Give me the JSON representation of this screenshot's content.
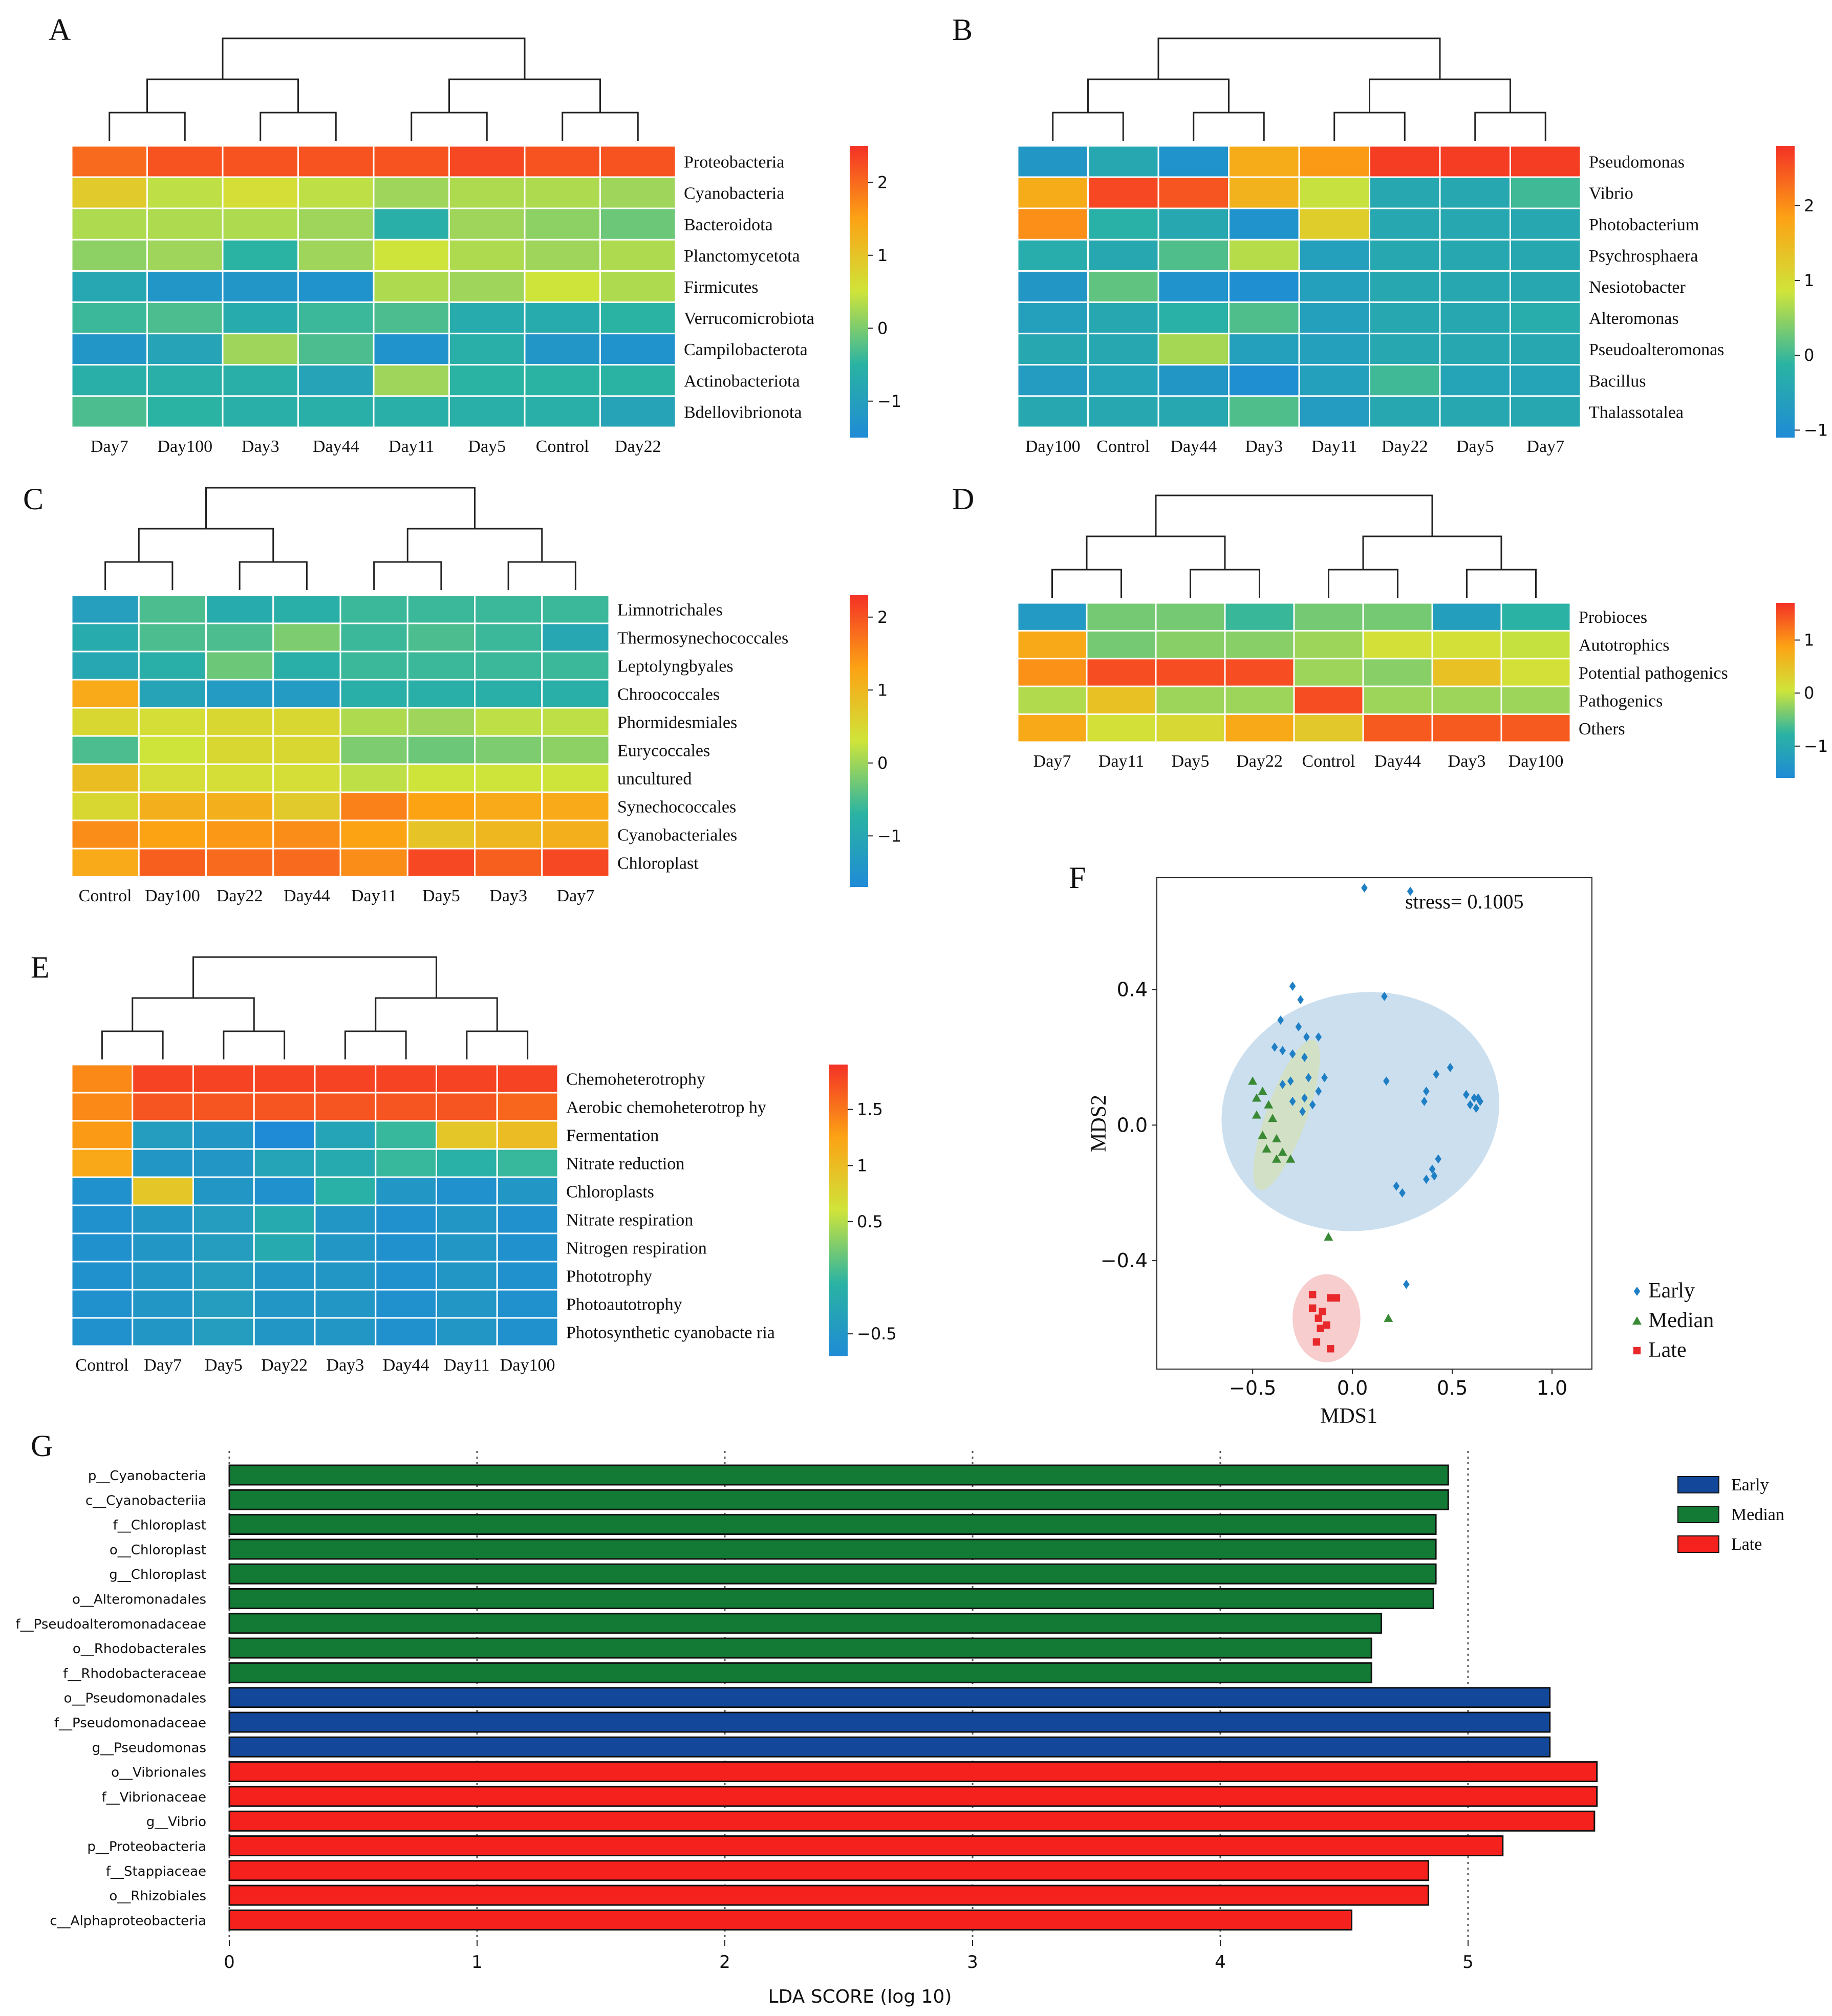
{
  "chart_data": [
    {
      "panel": "A",
      "type": "heatmap",
      "title": "A",
      "columns": [
        "Day7",
        "Day100",
        "Day3",
        "Day44",
        "Day11",
        "Day5",
        "Control",
        "Day22"
      ],
      "rows": [
        "Proteobacteria",
        "Cyanobacteria",
        "Bacteroidota",
        "Planctomycetota",
        "Firmicutes",
        "Verrucomicrobiota",
        "Campilobacterota",
        "Actinobacteriota",
        "Bdellovibrionota"
      ],
      "values": [
        [
          2.0,
          2.2,
          2.2,
          2.2,
          2.2,
          2.3,
          2.2,
          2.2
        ],
        [
          0.9,
          0.4,
          0.6,
          0.4,
          0.2,
          0.3,
          0.3,
          0.2
        ],
        [
          0.3,
          0.3,
          0.3,
          0.2,
          -0.6,
          0.2,
          0.1,
          -0.1
        ],
        [
          0.1,
          0.2,
          -0.5,
          0.2,
          0.5,
          0.3,
          0.2,
          0.3
        ],
        [
          -0.8,
          -1.2,
          -1.2,
          -1.3,
          0.3,
          0.2,
          0.5,
          0.3
        ],
        [
          -0.4,
          -0.3,
          -0.7,
          -0.4,
          -0.3,
          -0.7,
          -0.7,
          -0.5
        ],
        [
          -1.2,
          -0.9,
          0.2,
          -0.3,
          -1.3,
          -0.6,
          -1.2,
          -1.3
        ],
        [
          -0.6,
          -0.6,
          -0.6,
          -0.9,
          0.2,
          -0.5,
          -0.5,
          -0.5
        ],
        [
          -0.3,
          -0.5,
          -0.6,
          -0.6,
          -0.6,
          -0.6,
          -0.6,
          -0.9
        ]
      ],
      "colorbar_ticks": [
        2,
        1,
        0,
        -1
      ],
      "colorbar_range": [
        -1.5,
        2.5
      ]
    },
    {
      "panel": "B",
      "type": "heatmap",
      "title": "B",
      "columns": [
        "Day100",
        "Control",
        "Day44",
        "Day3",
        "Day11",
        "Day22",
        "Day5",
        "Day7"
      ],
      "rows": [
        "Pseudomonas",
        "Vibrio",
        "Photobacterium",
        "Psychrosphaera",
        "Nesiotobacter",
        "Alteromonas",
        "Pseudoalteromonas",
        "Bacillus",
        "Thalassotalea"
      ],
      "values": [
        [
          -0.8,
          -0.4,
          -0.9,
          1.7,
          1.9,
          2.7,
          2.7,
          2.7
        ],
        [
          1.7,
          2.6,
          2.5,
          1.6,
          0.8,
          -0.4,
          -0.4,
          0.0
        ],
        [
          2.0,
          -0.2,
          -0.4,
          -0.9,
          1.2,
          -0.4,
          -0.4,
          -0.4
        ],
        [
          -0.3,
          -0.4,
          0.1,
          0.7,
          -0.6,
          -0.4,
          -0.4,
          -0.4
        ],
        [
          -0.8,
          0.2,
          -0.9,
          -1.0,
          -0.6,
          -0.4,
          -0.4,
          -0.4
        ],
        [
          -0.6,
          -0.4,
          -0.2,
          0.1,
          -0.6,
          -0.4,
          -0.4,
          -0.3
        ],
        [
          -0.4,
          -0.4,
          0.6,
          -0.6,
          -0.6,
          -0.4,
          -0.4,
          -0.4
        ],
        [
          -0.7,
          -0.5,
          -0.8,
          -1.0,
          -0.6,
          0.0,
          -0.5,
          -0.5
        ],
        [
          -0.4,
          -0.4,
          -0.4,
          0.1,
          -0.7,
          -0.4,
          -0.4,
          -0.4
        ]
      ],
      "colorbar_ticks": [
        2,
        1,
        0,
        -1
      ],
      "colorbar_range": [
        -1.1,
        2.8
      ]
    },
    {
      "panel": "C",
      "type": "heatmap",
      "title": "C",
      "columns": [
        "Control",
        "Day100",
        "Day22",
        "Day44",
        "Day11",
        "Day5",
        "Day3",
        "Day7"
      ],
      "rows": [
        "Limnotrichales",
        "Thermosynechococcales",
        "Leptolyngbyales",
        "Chroococcales",
        "Phormidesmiales",
        "Eurycoccales",
        "uncultured",
        "Synechococcales",
        "Cyanobacteriales",
        "Chloroplast"
      ],
      "values": [
        [
          -1.2,
          -0.5,
          -0.9,
          -0.8,
          -0.6,
          -0.6,
          -0.6,
          -0.6
        ],
        [
          -0.9,
          -0.5,
          -0.5,
          -0.2,
          -0.6,
          -0.5,
          -0.6,
          -1.0
        ],
        [
          -1.0,
          -0.8,
          -0.3,
          -0.8,
          -0.6,
          -0.6,
          -0.6,
          -0.6
        ],
        [
          1.2,
          -1.1,
          -1.3,
          -1.3,
          -0.8,
          -0.8,
          -0.8,
          -0.8
        ],
        [
          0.5,
          0.4,
          0.5,
          0.5,
          0.1,
          0.0,
          0.2,
          0.2
        ],
        [
          -0.5,
          0.3,
          0.5,
          0.5,
          -0.2,
          -0.3,
          -0.2,
          -0.1
        ],
        [
          0.9,
          0.4,
          0.4,
          0.4,
          0.2,
          0.3,
          0.3,
          0.3
        ],
        [
          0.5,
          1.1,
          1.1,
          0.7,
          1.6,
          1.3,
          1.2,
          1.2
        ],
        [
          1.5,
          1.3,
          1.4,
          1.5,
          1.3,
          0.8,
          1.0,
          1.1
        ],
        [
          1.2,
          1.9,
          1.8,
          1.8,
          1.5,
          2.1,
          1.9,
          2.1
        ]
      ],
      "colorbar_ticks": [
        2,
        1,
        0,
        -1
      ],
      "colorbar_range": [
        -1.7,
        2.3
      ]
    },
    {
      "panel": "D",
      "type": "heatmap",
      "title": "D",
      "columns": [
        "Day7",
        "Day11",
        "Day5",
        "Day22",
        "Control",
        "Day44",
        "Day3",
        "Day100"
      ],
      "rows": [
        "Probioces",
        "Autotrophics",
        "Potential pathogenics",
        "Pathogenics",
        "Others"
      ],
      "values": [
        [
          -1.3,
          -0.4,
          -0.4,
          -0.7,
          -0.4,
          -0.4,
          -1.2,
          -0.8
        ],
        [
          0.8,
          -0.4,
          -0.3,
          -0.3,
          -0.2,
          0.1,
          0.1,
          0.0
        ],
        [
          1.0,
          1.5,
          1.5,
          1.5,
          -0.2,
          -0.3,
          0.5,
          0.1
        ],
        [
          -0.1,
          0.5,
          -0.2,
          -0.2,
          1.5,
          -0.2,
          -0.2,
          -0.2
        ],
        [
          0.8,
          0.1,
          0.2,
          0.8,
          0.4,
          1.4,
          1.4,
          1.4
        ]
      ],
      "colorbar_ticks": [
        1,
        0,
        -1
      ],
      "colorbar_range": [
        -1.6,
        1.7
      ]
    },
    {
      "panel": "E",
      "type": "heatmap",
      "title": "E",
      "columns": [
        "Control",
        "Day7",
        "Day5",
        "Day22",
        "Day3",
        "Day44",
        "Day11",
        "Day100"
      ],
      "rows": [
        "Chemoheterotrophy",
        "Aerobic chemoheterotrop hy",
        "Fermentation",
        "Nitrate reduction",
        "Chloroplasts",
        "Nitrate respiration",
        "Nitrogen respiration",
        "Phototrophy",
        "Photoautotrophy",
        "Photosynthetic cyanobacte ria"
      ],
      "values": [
        [
          1.4,
          1.8,
          1.8,
          1.8,
          1.8,
          1.8,
          1.8,
          1.8
        ],
        [
          1.4,
          1.7,
          1.7,
          1.7,
          1.7,
          1.7,
          1.7,
          1.6
        ],
        [
          1.3,
          -0.4,
          -0.5,
          -0.7,
          -0.3,
          0.0,
          0.9,
          1.0
        ],
        [
          1.2,
          -0.5,
          -0.5,
          -0.3,
          -0.2,
          0.0,
          -0.1,
          0.0
        ],
        [
          -0.6,
          0.9,
          -0.5,
          -0.6,
          -0.1,
          -0.5,
          -0.6,
          -0.5
        ],
        [
          -0.6,
          -0.5,
          -0.4,
          -0.2,
          -0.5,
          -0.6,
          -0.5,
          -0.6
        ],
        [
          -0.6,
          -0.5,
          -0.4,
          -0.2,
          -0.5,
          -0.6,
          -0.5,
          -0.6
        ],
        [
          -0.6,
          -0.5,
          -0.4,
          -0.5,
          -0.5,
          -0.6,
          -0.5,
          -0.6
        ],
        [
          -0.6,
          -0.5,
          -0.4,
          -0.5,
          -0.5,
          -0.6,
          -0.5,
          -0.6
        ],
        [
          -0.6,
          -0.5,
          -0.4,
          -0.5,
          -0.5,
          -0.6,
          -0.5,
          -0.6
        ]
      ],
      "colorbar_ticks": [
        1.5,
        1,
        0.5,
        -0.5
      ],
      "colorbar_range": [
        -0.7,
        1.9
      ]
    },
    {
      "panel": "F",
      "type": "scatter",
      "title": "F",
      "xlabel": "MDS1",
      "ylabel": "MDS2",
      "xlim": [
        -0.98,
        1.2
      ],
      "ylim": [
        -0.72,
        0.73
      ],
      "xticks": [
        "-0.5",
        "0.0",
        "0.5",
        "1.0"
      ],
      "xtick_values": [
        -0.5,
        0.0,
        0.5,
        1.0
      ],
      "yticks": [
        "0.4",
        "0.0",
        "-0.4"
      ],
      "ytick_values": [
        0.4,
        0.0,
        -0.4
      ],
      "annotation": "stress= 0.1005",
      "legend": [
        "Early",
        "Median",
        "Late"
      ],
      "series": [
        {
          "name": "Early",
          "color": "#1f7fc4",
          "marker": "diamond",
          "points": [
            [
              0.06,
              0.7
            ],
            [
              0.29,
              0.69
            ],
            [
              -0.3,
              0.41
            ],
            [
              0.16,
              0.38
            ],
            [
              -0.26,
              0.37
            ],
            [
              -0.36,
              0.31
            ],
            [
              -0.27,
              0.29
            ],
            [
              -0.23,
              0.26
            ],
            [
              -0.17,
              0.26
            ],
            [
              -0.39,
              0.23
            ],
            [
              -0.35,
              0.22
            ],
            [
              -0.3,
              0.21
            ],
            [
              -0.24,
              0.2
            ],
            [
              -0.14,
              0.14
            ],
            [
              -0.22,
              0.14
            ],
            [
              -0.31,
              0.13
            ],
            [
              -0.35,
              0.12
            ],
            [
              -0.17,
              0.1
            ],
            [
              -0.24,
              0.08
            ],
            [
              -0.3,
              0.07
            ],
            [
              -0.2,
              0.06
            ],
            [
              -0.25,
              0.04
            ],
            [
              0.49,
              0.17
            ],
            [
              0.42,
              0.15
            ],
            [
              0.37,
              0.1
            ],
            [
              0.17,
              0.13
            ],
            [
              0.36,
              0.07
            ],
            [
              0.57,
              0.09
            ],
            [
              0.61,
              0.08
            ],
            [
              0.63,
              0.08
            ],
            [
              0.59,
              0.06
            ],
            [
              0.62,
              0.05
            ],
            [
              0.64,
              0.07
            ],
            [
              0.43,
              -0.1
            ],
            [
              0.4,
              -0.13
            ],
            [
              0.41,
              -0.15
            ],
            [
              0.37,
              -0.16
            ],
            [
              0.22,
              -0.18
            ],
            [
              0.25,
              -0.2
            ],
            [
              0.27,
              -0.47
            ]
          ]
        },
        {
          "name": "Median",
          "color": "#3a8a35",
          "marker": "triangle",
          "points": [
            [
              -0.5,
              0.13
            ],
            [
              -0.48,
              0.08
            ],
            [
              -0.45,
              0.1
            ],
            [
              -0.42,
              0.06
            ],
            [
              -0.48,
              0.03
            ],
            [
              -0.4,
              0.02
            ],
            [
              -0.45,
              -0.03
            ],
            [
              -0.38,
              -0.04
            ],
            [
              -0.43,
              -0.07
            ],
            [
              -0.35,
              -0.08
            ],
            [
              -0.31,
              -0.1
            ],
            [
              -0.38,
              -0.1
            ],
            [
              -0.12,
              -0.33
            ],
            [
              0.18,
              -0.57
            ]
          ]
        },
        {
          "name": "Late",
          "color": "#e8282a",
          "marker": "square",
          "points": [
            [
              -0.2,
              -0.5
            ],
            [
              -0.11,
              -0.51
            ],
            [
              -0.2,
              -0.54
            ],
            [
              -0.15,
              -0.55
            ],
            [
              -0.08,
              -0.51
            ],
            [
              -0.17,
              -0.57
            ],
            [
              -0.16,
              -0.6
            ],
            [
              -0.13,
              -0.59
            ],
            [
              -0.18,
              -0.64
            ],
            [
              -0.11,
              -0.66
            ]
          ]
        }
      ],
      "ellipses": [
        {
          "group": "Early",
          "color": "#c2d9ec",
          "center": [
            0.04,
            0.04
          ],
          "rx": 0.7,
          "ry": 0.35,
          "angle": -12
        },
        {
          "group": "Median",
          "color": "#d4e2bd",
          "center": [
            -0.33,
            0.03
          ],
          "rx": 0.4,
          "ry": 0.06,
          "angle": -70
        },
        {
          "group": "Late",
          "color": "#f6c4c4",
          "center": [
            -0.13,
            -0.57
          ],
          "rx": 0.17,
          "ry": 0.13,
          "angle": 0
        }
      ]
    },
    {
      "panel": "G",
      "type": "bar",
      "orientation": "horizontal",
      "title": "G",
      "xlabel": "LDA SCORE (log 10)",
      "xlim": [
        0,
        5.5
      ],
      "xticks": [
        0,
        1,
        2,
        3,
        4,
        5
      ],
      "legend": [
        {
          "name": "Early",
          "color": "#13479a"
        },
        {
          "name": "Median",
          "color": "#127a35"
        },
        {
          "name": "Late",
          "color": "#f5211c"
        }
      ],
      "categories": [
        "p__Cyanobacteria",
        "c__Cyanobacteriia",
        "f__Chloroplast",
        "o__Chloroplast",
        "g__Chloroplast",
        "o__Alteromonadales",
        "f__Pseudoalteromonadaceae",
        "o__Rhodobacterales",
        "f__Rhodobacteraceae",
        "o__Pseudomonadales",
        "f__Pseudomonadaceae",
        "g__Pseudomonas",
        "o__Vibrionales",
        "f__Vibrionaceae",
        "g__Vibrio",
        "p__Proteobacteria",
        "f__Stappiaceae",
        "o__Rhizobiales",
        "c__Alphaproteobacteria"
      ],
      "values": [
        4.92,
        4.92,
        4.87,
        4.87,
        4.87,
        4.86,
        4.65,
        4.61,
        4.61,
        5.33,
        5.33,
        5.33,
        5.52,
        5.52,
        5.51,
        5.14,
        4.84,
        4.84,
        4.53
      ],
      "groups": [
        "Median",
        "Median",
        "Median",
        "Median",
        "Median",
        "Median",
        "Median",
        "Median",
        "Median",
        "Early",
        "Early",
        "Early",
        "Late",
        "Late",
        "Late",
        "Late",
        "Late",
        "Late",
        "Late"
      ]
    }
  ]
}
